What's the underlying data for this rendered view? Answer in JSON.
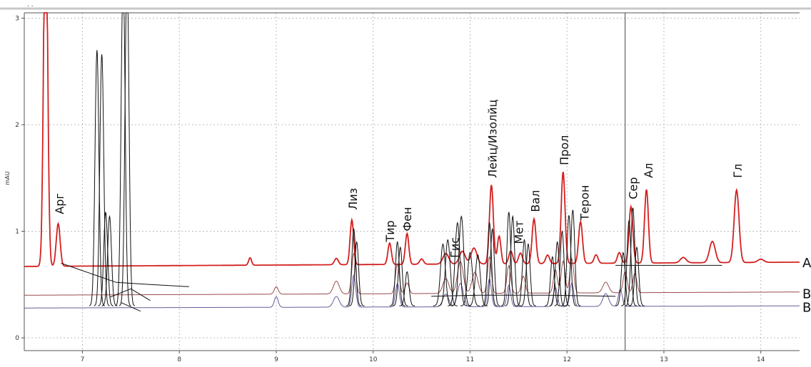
{
  "chart_data": {
    "type": "line",
    "title": "",
    "top_mark": ". .",
    "xlabel": "",
    "ylabel": "mAU",
    "xlim": [
      6.4,
      14.4
    ],
    "ylim": [
      -0.12,
      3.05
    ],
    "x_ticks": [
      7,
      8,
      9,
      10,
      11,
      12,
      13,
      14
    ],
    "y_ticks": [
      0,
      1,
      2,
      3
    ],
    "grid": true,
    "cursor_x": 12.6,
    "colors": {
      "A": "#d42020",
      "B1": "#9a4a4a",
      "B2": "#6a5a9a",
      "fit": "#111111",
      "axis": "#555555",
      "grid": "#bbbbbb"
    },
    "series": [
      {
        "key": "A",
        "baseline": 0.67,
        "drift": 0.04,
        "peaks": [
          [
            6.62,
            3.6,
            0.02
          ],
          [
            6.75,
            0.4,
            0.02
          ],
          [
            8.73,
            0.07,
            0.015
          ],
          [
            9.62,
            0.06,
            0.02
          ],
          [
            9.78,
            0.42,
            0.018
          ],
          [
            10.17,
            0.2,
            0.018
          ],
          [
            10.35,
            0.29,
            0.018
          ],
          [
            10.5,
            0.05,
            0.02
          ],
          [
            10.75,
            0.1,
            0.03
          ],
          [
            10.92,
            0.12,
            0.03
          ],
          [
            11.04,
            0.15,
            0.03
          ],
          [
            11.22,
            0.74,
            0.02
          ],
          [
            11.3,
            0.26,
            0.018
          ],
          [
            11.42,
            0.12,
            0.02
          ],
          [
            11.52,
            0.1,
            0.02
          ],
          [
            11.66,
            0.42,
            0.02
          ],
          [
            11.8,
            0.08,
            0.02
          ],
          [
            11.96,
            0.86,
            0.02
          ],
          [
            12.14,
            0.39,
            0.02
          ],
          [
            12.3,
            0.08,
            0.02
          ],
          [
            12.54,
            0.1,
            0.02
          ],
          [
            12.66,
            0.53,
            0.02
          ],
          [
            12.82,
            0.69,
            0.02
          ],
          [
            13.2,
            0.05,
            0.03
          ],
          [
            13.5,
            0.2,
            0.03
          ],
          [
            13.75,
            0.68,
            0.025
          ],
          [
            14.0,
            0.03,
            0.03
          ]
        ]
      },
      {
        "key": "B1",
        "baseline": 0.4,
        "drift": 0.03,
        "peaks": [
          [
            9.0,
            0.07,
            0.02
          ],
          [
            9.62,
            0.12,
            0.03
          ],
          [
            9.8,
            0.38,
            0.02
          ],
          [
            10.25,
            0.28,
            0.02
          ],
          [
            10.35,
            0.1,
            0.02
          ],
          [
            10.75,
            0.14,
            0.03
          ],
          [
            10.9,
            0.3,
            0.03
          ],
          [
            11.05,
            0.2,
            0.03
          ],
          [
            11.2,
            0.34,
            0.02
          ],
          [
            11.4,
            0.26,
            0.02
          ],
          [
            11.55,
            0.16,
            0.02
          ],
          [
            11.88,
            0.22,
            0.02
          ],
          [
            11.96,
            0.3,
            0.02
          ],
          [
            12.05,
            0.32,
            0.02
          ],
          [
            12.4,
            0.1,
            0.03
          ],
          [
            12.6,
            0.2,
            0.02
          ],
          [
            12.7,
            0.18,
            0.02
          ]
        ]
      },
      {
        "key": "B2",
        "baseline": 0.28,
        "drift": 0.02,
        "peaks": [
          [
            9.0,
            0.1,
            0.02
          ],
          [
            9.62,
            0.1,
            0.03
          ],
          [
            9.8,
            0.3,
            0.02
          ],
          [
            10.25,
            0.22,
            0.02
          ],
          [
            10.75,
            0.12,
            0.03
          ],
          [
            10.9,
            0.22,
            0.03
          ],
          [
            11.2,
            0.26,
            0.02
          ],
          [
            11.4,
            0.2,
            0.02
          ],
          [
            11.88,
            0.18,
            0.02
          ],
          [
            12.05,
            0.22,
            0.02
          ],
          [
            12.4,
            0.12,
            0.03
          ],
          [
            12.55,
            0.16,
            0.02
          ]
        ]
      }
    ],
    "fit_peaks": [
      [
        7.15,
        2.4,
        0.02
      ],
      [
        7.2,
        2.36,
        0.02
      ],
      [
        7.24,
        0.88,
        0.02
      ],
      [
        7.28,
        0.84,
        0.02
      ],
      [
        7.42,
        3.2,
        0.02
      ],
      [
        7.46,
        3.2,
        0.02
      ],
      [
        9.8,
        0.72,
        0.02
      ],
      [
        9.83,
        0.6,
        0.02
      ],
      [
        10.25,
        0.6,
        0.02
      ],
      [
        10.28,
        0.55,
        0.02
      ],
      [
        10.35,
        0.32,
        0.02
      ],
      [
        10.72,
        0.58,
        0.025
      ],
      [
        10.77,
        0.62,
        0.025
      ],
      [
        10.87,
        0.78,
        0.025
      ],
      [
        10.91,
        0.84,
        0.025
      ],
      [
        11.0,
        0.5,
        0.025
      ],
      [
        11.08,
        0.48,
        0.025
      ],
      [
        11.2,
        0.78,
        0.02
      ],
      [
        11.23,
        0.72,
        0.02
      ],
      [
        11.4,
        0.88,
        0.02
      ],
      [
        11.44,
        0.84,
        0.02
      ],
      [
        11.56,
        0.62,
        0.02
      ],
      [
        11.6,
        0.58,
        0.02
      ],
      [
        11.85,
        0.46,
        0.02
      ],
      [
        11.9,
        0.6,
        0.02
      ],
      [
        11.95,
        0.7,
        0.02
      ],
      [
        12.02,
        0.85,
        0.02
      ],
      [
        12.06,
        0.9,
        0.02
      ],
      [
        12.58,
        0.5,
        0.02
      ],
      [
        12.64,
        0.8,
        0.02
      ],
      [
        12.68,
        0.92,
        0.02
      ],
      [
        12.72,
        0.55,
        0.02
      ]
    ],
    "fit_baselines": [
      [
        [
          6.78,
          0.7
        ],
        [
          7.35,
          0.52
        ],
        [
          7.7,
          0.5
        ],
        [
          8.1,
          0.48
        ]
      ],
      [
        [
          7.28,
          0.38
        ],
        [
          7.5,
          0.46
        ],
        [
          7.7,
          0.35
        ]
      ],
      [
        [
          7.4,
          0.33
        ],
        [
          7.6,
          0.25
        ]
      ],
      [
        [
          10.6,
          0.39
        ],
        [
          11.1,
          0.4
        ],
        [
          11.8,
          0.4
        ],
        [
          12.5,
          0.39
        ]
      ],
      [
        [
          12.5,
          0.68
        ],
        [
          13.6,
          0.68
        ]
      ]
    ],
    "annotations": [
      {
        "text": "Арг",
        "x": 6.76,
        "y": 1.16
      },
      {
        "text": "Лиз",
        "x": 9.79,
        "y": 1.2
      },
      {
        "text": "Тир",
        "x": 10.17,
        "y": 0.9
      },
      {
        "text": "Фен",
        "x": 10.35,
        "y": 1.0
      },
      {
        "text": "Гис",
        "x": 10.84,
        "y": 0.75
      },
      {
        "text": "Лейц/Изолйц",
        "x": 11.23,
        "y": 1.5
      },
      {
        "text": "Мет",
        "x": 11.5,
        "y": 0.88
      },
      {
        "text": "Вал",
        "x": 11.67,
        "y": 1.18
      },
      {
        "text": "Прол",
        "x": 11.97,
        "y": 1.62
      },
      {
        "text": "Терон",
        "x": 12.18,
        "y": 1.1
      },
      {
        "text": "Сер",
        "x": 12.68,
        "y": 1.3
      },
      {
        "text": "Ал",
        "x": 12.84,
        "y": 1.5
      },
      {
        "text": "Гл",
        "x": 13.76,
        "y": 1.5
      }
    ],
    "trace_labels": [
      {
        "text": "A",
        "y": 0.71
      },
      {
        "text": "B",
        "y": 0.42
      },
      {
        "text": "B",
        "y": 0.29
      }
    ]
  }
}
